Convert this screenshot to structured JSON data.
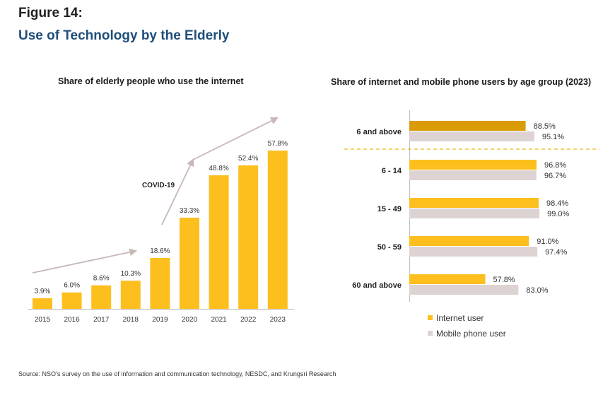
{
  "figure_label": "Figure 14:",
  "figure_title": "Use of Technology by the Elderly",
  "source": "Source: NSO’s survey on the use of information and communication technology, NESDC, and Krungsri Research",
  "colors": {
    "bar": "#fcbf1e",
    "highlight": "#d99c07",
    "mobile": "#ddd3d3",
    "arrow": "#c7b7b7",
    "divider": "#f1b51a"
  },
  "chart_data": [
    {
      "type": "bar",
      "title": "Share of elderly people who use the internet",
      "categories": [
        "2015",
        "2016",
        "2017",
        "2018",
        "2019",
        "2020",
        "2021",
        "2022",
        "2023"
      ],
      "values": [
        3.9,
        6.0,
        8.6,
        10.3,
        18.6,
        33.3,
        48.8,
        52.4,
        57.8
      ],
      "value_labels": [
        "3.9%",
        "6.0%",
        "8.6%",
        "10.3%",
        "18.6%",
        "33.3%",
        "48.8%",
        "52.4%",
        "57.8%"
      ],
      "annotation": "COVID-19",
      "ylim": [
        0,
        65
      ],
      "grid": false
    },
    {
      "type": "bar",
      "orientation": "horizontal",
      "title": "Share of internet and mobile phone users by age group (2023)",
      "categories": [
        "6 and above",
        "6 - 14",
        "15 - 49",
        "50 - 59",
        "60 and above"
      ],
      "series": [
        {
          "name": "Internet user",
          "values": [
            88.5,
            96.8,
            98.4,
            91.0,
            57.8
          ],
          "labels": [
            "88.5%",
            "96.8%",
            "98.4%",
            "91.0%",
            "57.8%"
          ]
        },
        {
          "name": "Mobile phone user",
          "values": [
            95.1,
            96.7,
            99.0,
            97.4,
            83.0
          ],
          "labels": [
            "95.1%",
            "96.7%",
            "99.0%",
            "97.4%",
            "83.0%"
          ]
        }
      ],
      "xlim": [
        0,
        100
      ],
      "legend": "bottom",
      "grid": false
    }
  ]
}
